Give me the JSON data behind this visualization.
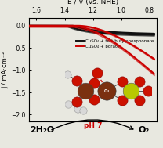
{
  "title": "E / V (vs. NHE)",
  "ylabel": "j / mA·cm⁻²",
  "xlim": [
    1.65,
    0.75
  ],
  "ylim": [
    -2.15,
    0.18
  ],
  "x_ticks": [
    1.6,
    1.4,
    1.2,
    1.0,
    0.8
  ],
  "y_ticks": [
    0.0,
    -0.5,
    -1.0,
    -1.5,
    -2.0
  ],
  "black_label": "CuSO₄ + tert-butylphosphonate",
  "red_label": "CuSO₄ + borate",
  "h2o_label": "2H₂O",
  "o2_label": "O₂",
  "ph_label": "pH 7",
  "bg_color": "#e8e8e0",
  "black_color": "#111111",
  "red_color": "#cc0000"
}
